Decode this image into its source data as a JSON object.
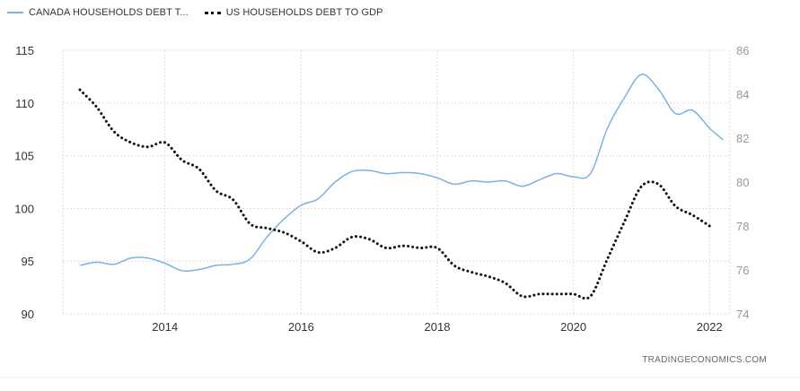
{
  "legend": [
    {
      "label": "CANADA HOUSEHOLDS DEBT T...",
      "color": "#7cb1e3",
      "style": "solid"
    },
    {
      "label": "US HOUSEHOLDS DEBT TO GDP",
      "color": "#111111",
      "style": "dotted"
    }
  ],
  "watermark": "TRADINGECONOMICS.COM",
  "chart_data": {
    "type": "line",
    "title": "",
    "x_ticks": [
      "2014",
      "2016",
      "2018",
      "2020",
      "2022"
    ],
    "x_range": [
      2012.5,
      2022.3
    ],
    "left_axis": {
      "range": [
        90,
        115
      ],
      "ticks": [
        90,
        95,
        100,
        105,
        110,
        115
      ]
    },
    "right_axis": {
      "range": [
        74,
        86
      ],
      "ticks": [
        74,
        76,
        78,
        80,
        82,
        84,
        86
      ]
    },
    "grid": true,
    "legend_position": "top-left",
    "series": [
      {
        "name": "CANADA HOUSEHOLDS DEBT T...",
        "axis": "left",
        "color": "#7cb1e3",
        "style": "solid",
        "x": [
          2012.75,
          2013.0,
          2013.25,
          2013.5,
          2013.75,
          2014.0,
          2014.25,
          2014.5,
          2014.75,
          2015.0,
          2015.25,
          2015.5,
          2015.75,
          2016.0,
          2016.25,
          2016.5,
          2016.75,
          2017.0,
          2017.25,
          2017.5,
          2017.75,
          2018.0,
          2018.25,
          2018.5,
          2018.75,
          2019.0,
          2019.25,
          2019.5,
          2019.75,
          2020.0,
          2020.25,
          2020.5,
          2020.75,
          2021.0,
          2021.25,
          2021.5,
          2021.75,
          2022.0,
          2022.2
        ],
        "values": [
          94.6,
          94.9,
          94.7,
          95.3,
          95.3,
          94.8,
          94.1,
          94.2,
          94.6,
          94.7,
          95.2,
          97.3,
          99.0,
          100.3,
          100.9,
          102.5,
          103.5,
          103.6,
          103.3,
          103.4,
          103.3,
          102.9,
          102.3,
          102.6,
          102.5,
          102.6,
          102.1,
          102.7,
          103.3,
          103.0,
          103.3,
          107.6,
          110.5,
          112.7,
          111.3,
          109.0,
          109.3,
          107.6,
          106.5
        ]
      },
      {
        "name": "US HOUSEHOLDS DEBT TO GDP",
        "axis": "right",
        "color": "#111111",
        "style": "dotted",
        "x": [
          2012.75,
          2013.0,
          2013.25,
          2013.5,
          2013.75,
          2014.0,
          2014.25,
          2014.5,
          2014.75,
          2015.0,
          2015.25,
          2015.5,
          2015.75,
          2016.0,
          2016.25,
          2016.5,
          2016.75,
          2017.0,
          2017.25,
          2017.5,
          2017.75,
          2018.0,
          2018.25,
          2018.5,
          2018.75,
          2019.0,
          2019.25,
          2019.5,
          2019.75,
          2020.0,
          2020.25,
          2020.5,
          2020.75,
          2021.0,
          2021.25,
          2021.5,
          2021.75,
          2022.0
        ],
        "values": [
          84.2,
          83.4,
          82.3,
          81.8,
          81.6,
          81.8,
          81.0,
          80.6,
          79.6,
          79.2,
          78.1,
          77.9,
          77.7,
          77.3,
          76.8,
          77.0,
          77.5,
          77.4,
          77.0,
          77.1,
          77.0,
          77.0,
          76.2,
          75.9,
          75.7,
          75.4,
          74.8,
          74.9,
          74.9,
          74.9,
          74.8,
          76.5,
          78.2,
          79.8,
          79.9,
          78.9,
          78.5,
          78.0
        ]
      }
    ]
  }
}
